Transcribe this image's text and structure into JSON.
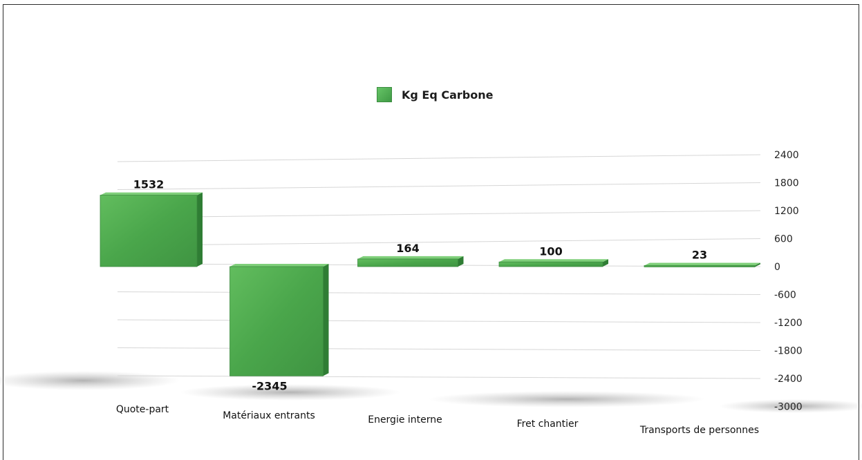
{
  "chart_data": {
    "type": "bar",
    "categories": [
      "Quote-part",
      "Matériaux entrants",
      "Energie interne",
      "Fret chantier",
      "Transports de personnes"
    ],
    "series": [
      {
        "name": "Kg Eq Carbone",
        "values": [
          1532,
          -2345,
          164,
          100,
          23
        ]
      }
    ],
    "data_labels": [
      "1532",
      "-2345",
      "164",
      "100",
      "23"
    ],
    "y_ticks": [
      "2400",
      "1800",
      "1200",
      "600",
      "0",
      "-600",
      "-1200",
      "-1800",
      "-2400",
      "-3000"
    ],
    "ylim": [
      -3000,
      2400
    ],
    "grid": true,
    "legend_position": "top-center",
    "y_axis_side": "right",
    "colors": {
      "bar_front": "#4fae50",
      "bar_side": "#2f7d34",
      "bar_top": "#7fcf7a",
      "grid": "#d6d6d6"
    }
  }
}
